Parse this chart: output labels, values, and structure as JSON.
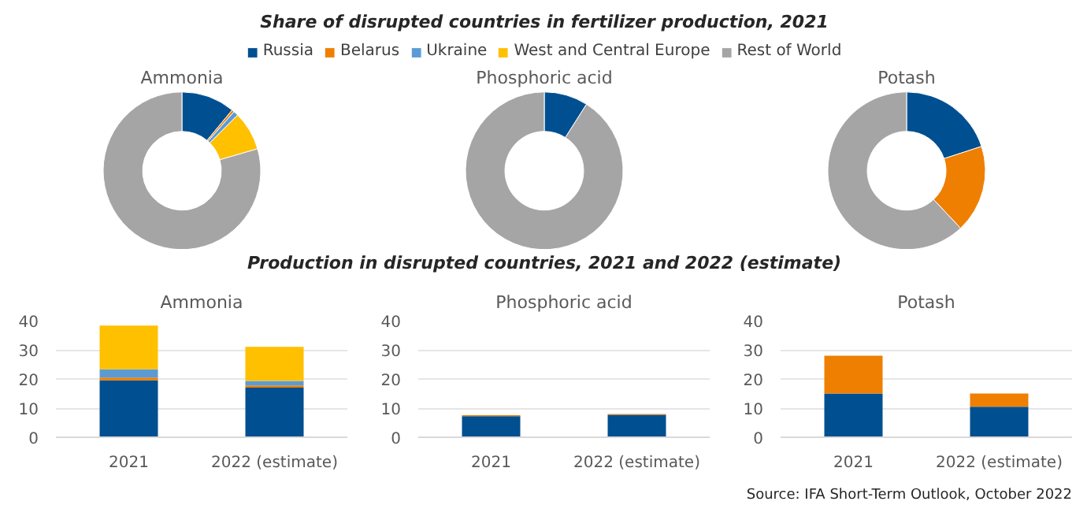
{
  "chart_data": [
    {
      "type": "donut",
      "subtitle": "Ammonia",
      "legend": "top",
      "categories": [
        "Russia",
        "Belarus",
        "Ukraine",
        "West and Central Europe",
        "Rest of World"
      ],
      "values": [
        11,
        0.5,
        1,
        8,
        79.5
      ],
      "colors": [
        "#004f91",
        "#ee7f00",
        "#5b9bd5",
        "#ffc000",
        "#a5a5a5"
      ]
    },
    {
      "type": "donut",
      "title": "Share of disrupted countries in fertilizer production, 2021",
      "subtitle": "Phosphoric acid",
      "categories": [
        null,
        null
      ],
      "values": [
        9,
        91
      ],
      "colors": [
        "#004f91",
        "#a5a5a5"
      ]
    },
    {
      "type": "donut",
      "subtitle": "Potash",
      "categories": [
        null,
        null,
        null
      ],
      "values": [
        20,
        18,
        62
      ],
      "colors": [
        "#004f91",
        "#ee7f00",
        "#a5a5a5"
      ]
    },
    {
      "type": "bar",
      "title": "Production in disrupted countries, 2021 and 2022 (estimate)",
      "subtitle": "Ammonia",
      "stacked": true,
      "grid": "y",
      "categories": [
        "2021",
        "2022 (estimate)"
      ],
      "ylim": [
        0,
        40
      ],
      "yticks": [
        0,
        10,
        20,
        30,
        40
      ],
      "series": [
        {
          "color": "#004f91",
          "values": [
            19.5,
            17
          ]
        },
        {
          "color": "#ee7f00",
          "values": [
            1,
            0.8
          ]
        },
        {
          "color": "#5b9bd5",
          "values": [
            2.8,
            1.5
          ]
        },
        {
          "color": "#ffc000",
          "values": [
            15,
            11.7
          ]
        }
      ]
    },
    {
      "type": "bar",
      "subtitle": "Phosphoric acid",
      "stacked": true,
      "grid": "y",
      "categories": [
        "2021",
        "2022 (estimate)"
      ],
      "ylim": [
        0,
        40
      ],
      "yticks": [
        0,
        10,
        20,
        30,
        40
      ],
      "series": [
        {
          "color": "#004f91",
          "values": [
            7.2,
            7.7
          ]
        },
        {
          "color": "#ee7f00",
          "values": [
            0.4,
            0.3
          ]
        }
      ]
    },
    {
      "type": "bar",
      "subtitle": "Potash",
      "stacked": true,
      "grid": "y",
      "categories": [
        "2021",
        "2022 (estimate)"
      ],
      "ylim": [
        0,
        40
      ],
      "yticks": [
        0,
        10,
        20,
        30,
        40
      ],
      "annotations": [
        "Source: IFA Short-Term Outlook, October 2022"
      ],
      "series": [
        {
          "color": "#004f91",
          "values": [
            15,
            10.5
          ]
        },
        {
          "color": "#ee7f00",
          "values": [
            13,
            4.5
          ]
        }
      ]
    }
  ]
}
